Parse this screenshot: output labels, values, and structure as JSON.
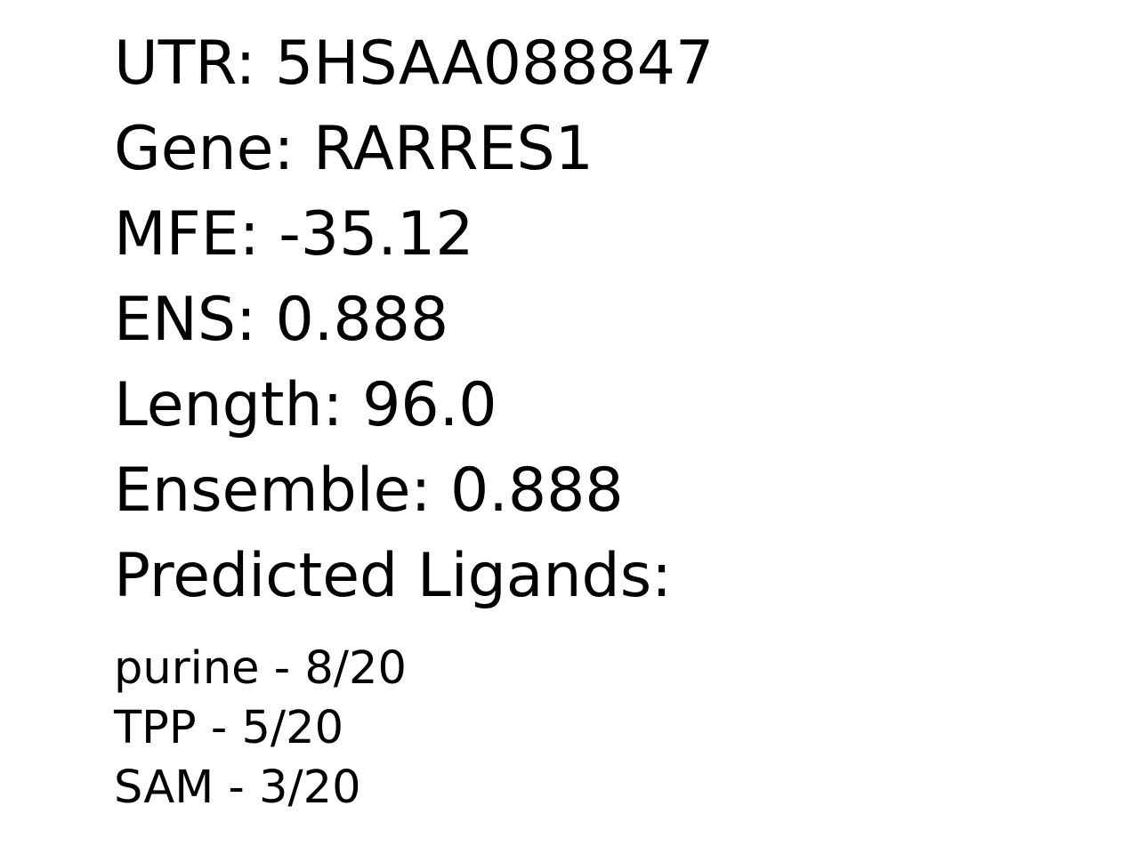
{
  "fields": [
    {
      "label": "UTR",
      "value": "5HSAA088847"
    },
    {
      "label": "Gene",
      "value": "RARRES1"
    },
    {
      "label": "MFE",
      "value": "-35.12"
    },
    {
      "label": "ENS",
      "value": "0.888"
    },
    {
      "label": "Length",
      "value": "96.0"
    },
    {
      "label": "Ensemble",
      "value": "0.888"
    }
  ],
  "lines": {
    "utr": "UTR: 5HSAA088847",
    "gene": "Gene: RARRES1",
    "mfe": "MFE: -35.12",
    "ens": "ENS: 0.888",
    "length": "Length: 96.0",
    "ensemble": "Ensemble: 0.888",
    "ligands_heading": "Predicted Ligands:"
  },
  "ligands": [
    {
      "name": "purine",
      "votes": 8,
      "total": 20,
      "text": "purine - 8/20"
    },
    {
      "name": "TPP",
      "votes": 5,
      "total": 20,
      "text": "TPP - 5/20"
    },
    {
      "name": "SAM",
      "votes": 3,
      "total": 20,
      "text": "SAM - 3/20"
    }
  ]
}
